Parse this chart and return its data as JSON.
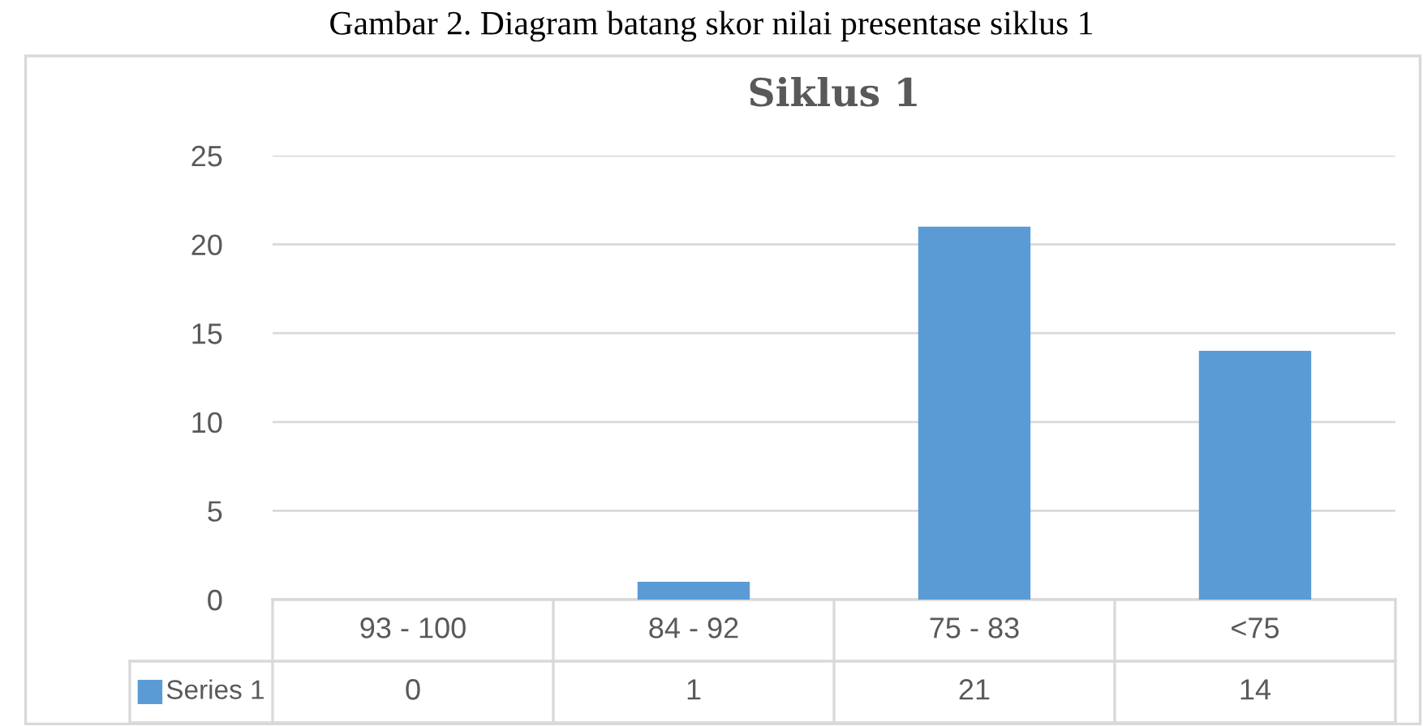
{
  "chart_data": {
    "type": "bar",
    "title": "Siklus 1",
    "annotations": [
      "Gambar 2. Diagram batang skor nilai presentase siklus 1"
    ],
    "categories": [
      "93 - 100",
      "84 - 92",
      "75 - 83",
      "<75"
    ],
    "series": [
      {
        "name": "Series 1",
        "color": "#5b9bd5",
        "values": [
          0,
          1,
          21,
          14
        ]
      }
    ],
    "ylim": [
      0,
      25
    ],
    "yticks": [
      0,
      5,
      10,
      15,
      20,
      25
    ],
    "grid": "y",
    "data_labels": true
  }
}
